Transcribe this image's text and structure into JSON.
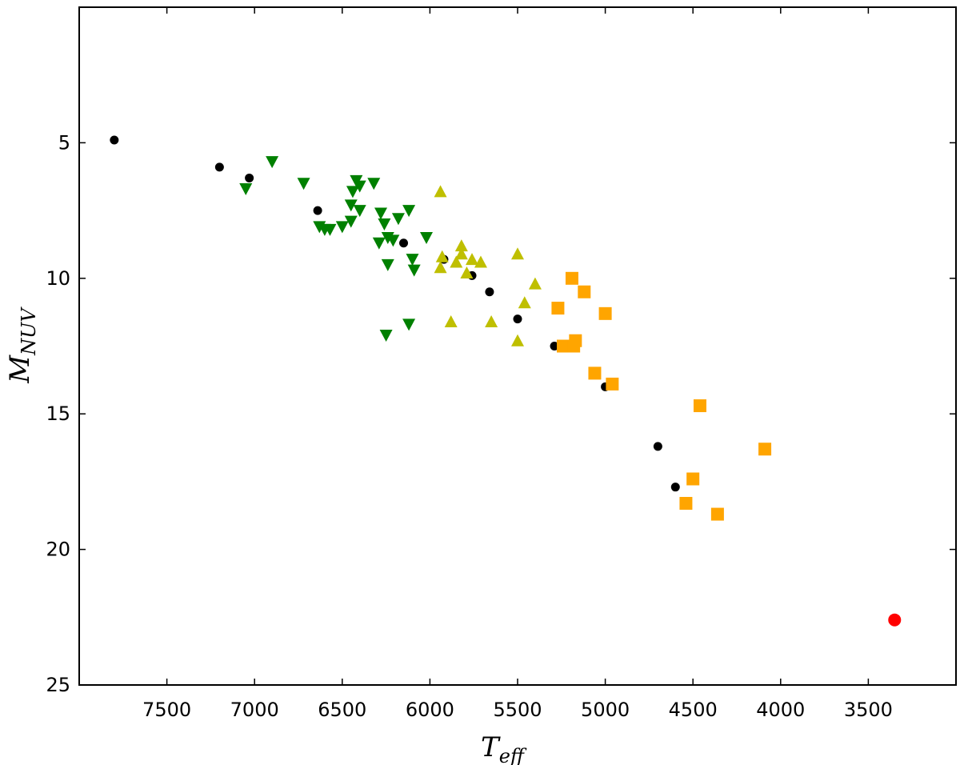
{
  "chart_data": {
    "type": "scatter",
    "xlabel_main": "T",
    "xlabel_sub": "eff",
    "ylabel_main": "M",
    "ylabel_sub": "NUV",
    "x_reversed": true,
    "y_inverted": true,
    "xlim": [
      3000,
      8000
    ],
    "ylim": [
      0,
      25
    ],
    "x_ticks": [
      7500,
      7000,
      6500,
      6000,
      5500,
      5000,
      4500,
      4000,
      3500
    ],
    "y_ticks": [
      5,
      10,
      15,
      20,
      25
    ],
    "grid": false,
    "series": [
      {
        "marker": "circle",
        "color": "#000000",
        "points": [
          [
            7800,
            4.9
          ],
          [
            7200,
            5.9
          ],
          [
            7030,
            6.3
          ],
          [
            6640,
            7.5
          ],
          [
            6150,
            8.7
          ],
          [
            5920,
            9.3
          ],
          [
            5760,
            9.9
          ],
          [
            5660,
            10.5
          ],
          [
            5500,
            11.5
          ],
          [
            5290,
            12.5
          ],
          [
            5000,
            14.0
          ],
          [
            4700,
            16.2
          ],
          [
            4600,
            17.7
          ]
        ]
      },
      {
        "marker": "triangle-down",
        "color": "#008000",
        "points": [
          [
            6900,
            5.7
          ],
          [
            7050,
            6.7
          ],
          [
            6720,
            6.5
          ],
          [
            6420,
            6.4
          ],
          [
            6320,
            6.5
          ],
          [
            6440,
            6.8
          ],
          [
            6400,
            6.6
          ],
          [
            6450,
            7.3
          ],
          [
            6400,
            7.5
          ],
          [
            6280,
            7.6
          ],
          [
            6120,
            7.5
          ],
          [
            6180,
            7.8
          ],
          [
            6260,
            8.0
          ],
          [
            6450,
            7.9
          ],
          [
            6500,
            8.1
          ],
          [
            6570,
            8.2
          ],
          [
            6630,
            8.1
          ],
          [
            6600,
            8.2
          ],
          [
            6240,
            8.5
          ],
          [
            6020,
            8.5
          ],
          [
            6210,
            8.6
          ],
          [
            6290,
            8.7
          ],
          [
            6240,
            9.5
          ],
          [
            6100,
            9.3
          ],
          [
            6090,
            9.7
          ],
          [
            6120,
            11.7
          ],
          [
            6250,
            12.1
          ]
        ]
      },
      {
        "marker": "triangle-up",
        "color": "#bfbf00",
        "points": [
          [
            5940,
            6.8
          ],
          [
            5820,
            8.8
          ],
          [
            5820,
            9.1
          ],
          [
            5930,
            9.2
          ],
          [
            5850,
            9.4
          ],
          [
            5760,
            9.3
          ],
          [
            5710,
            9.4
          ],
          [
            5940,
            9.6
          ],
          [
            5790,
            9.8
          ],
          [
            5500,
            9.1
          ],
          [
            5400,
            10.2
          ],
          [
            5460,
            10.9
          ],
          [
            5880,
            11.6
          ],
          [
            5650,
            11.6
          ],
          [
            5500,
            12.3
          ]
        ]
      },
      {
        "marker": "square",
        "color": "#ffa500",
        "points": [
          [
            5190,
            10.0
          ],
          [
            5120,
            10.5
          ],
          [
            5270,
            11.1
          ],
          [
            5000,
            11.3
          ],
          [
            5170,
            12.3
          ],
          [
            5240,
            12.5
          ],
          [
            5180,
            12.5
          ],
          [
            5060,
            13.5
          ],
          [
            4960,
            13.9
          ],
          [
            4460,
            14.7
          ],
          [
            4090,
            16.3
          ],
          [
            4500,
            17.4
          ],
          [
            4540,
            18.3
          ],
          [
            4360,
            18.7
          ]
        ]
      },
      {
        "marker": "circle-large",
        "color": "#ff0000",
        "points": [
          [
            3350,
            22.6
          ]
        ]
      }
    ]
  }
}
